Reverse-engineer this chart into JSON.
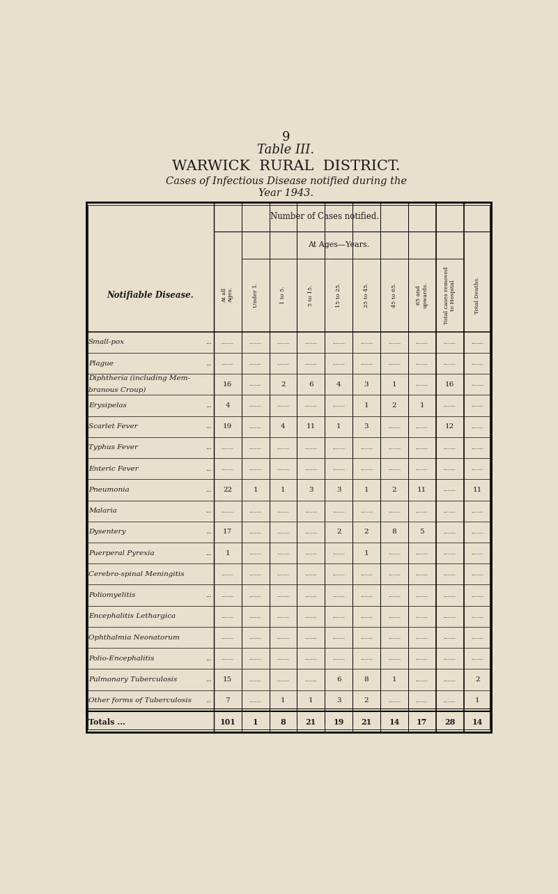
{
  "page_number": "9",
  "table_title": "Table III.",
  "subtitle1": "WARWICK  RURAL  DISTRICT.",
  "subtitle2": "Cases of Infectious Disease notified during the",
  "subtitle3": "Year 1943.",
  "bg_color": "#e8e0cc",
  "text_color": "#1a1a1a",
  "col_header_row1": "Number of Cases notified.",
  "col_header_ages": "At Ages—Years.",
  "col_headers": [
    "At all\nAges.",
    "Under 1.",
    "1 to 5.",
    "5 to 15.",
    "15 to 25.",
    "25 to 45.",
    "45 to 65.",
    "65 and\nupwards.",
    "Total cases removed\nto Hospital",
    "Total Deaths."
  ],
  "row_label_header": "Notifiable Disease.",
  "diseases": [
    "Small-pox",
    "Plague",
    "Diphtheria (including Mem-\nbranous Croup)",
    "Erysipelas",
    "Scarlet Fever",
    "Typhus Fever",
    "Enteric Fever",
    "Pneumonia",
    "Malaria",
    "Dysentery",
    "Puerperal Pyrexia",
    "Cerebro-spinal Meningitis",
    "Poliomyelitis",
    "Encephalitis Lethargica",
    "Ophthalmia Neonatorum",
    "Polio-Encephalitis",
    "Pulmonary Tuberculosis",
    "Other forms of Tuberculosis",
    "Totals ..."
  ],
  "disease_suffix": [
    "...",
    "...",
    "",
    "...",
    "...",
    "...",
    "...",
    "...",
    "...",
    "...",
    "...",
    "",
    "...",
    "",
    "",
    "...",
    "...",
    "...",
    "..."
  ],
  "data": [
    [
      "",
      "",
      "",
      "",
      "",
      "",
      "",
      "",
      "",
      ""
    ],
    [
      "",
      "",
      "",
      "",
      "",
      "",
      "",
      "",
      "",
      ""
    ],
    [
      "16",
      "",
      "2",
      "6",
      "4",
      "3",
      "1",
      "",
      "16",
      ""
    ],
    [
      "4",
      "",
      "",
      "",
      "",
      "1",
      "2",
      "1",
      "",
      ""
    ],
    [
      "19",
      "",
      "4",
      "11",
      "1",
      "3",
      "",
      "",
      "12",
      ""
    ],
    [
      "",
      "",
      "",
      "",
      "",
      "",
      "",
      "",
      "",
      ""
    ],
    [
      "",
      "",
      "",
      "",
      "",
      "",
      "",
      "",
      "",
      ""
    ],
    [
      "22",
      "1",
      "1",
      "3",
      "3",
      "1",
      "2",
      "11",
      "",
      "11"
    ],
    [
      "",
      "",
      "",
      "",
      "",
      "",
      "",
      "",
      "",
      ""
    ],
    [
      "17",
      "",
      "",
      "",
      "2",
      "2",
      "8",
      "5",
      "",
      ""
    ],
    [
      "1",
      "",
      "",
      "",
      "",
      "1",
      "",
      "",
      "",
      ""
    ],
    [
      "",
      "",
      "",
      "",
      "",
      "",
      "",
      "",
      "",
      ""
    ],
    [
      "",
      "",
      "",
      "",
      "",
      "",
      "",
      "",
      "",
      ""
    ],
    [
      "",
      "",
      "",
      "",
      "",
      "",
      "",
      "",
      "",
      ""
    ],
    [
      "",
      "",
      "",
      "",
      "",
      "",
      "",
      "",
      "",
      ""
    ],
    [
      "",
      "",
      "",
      "",
      "",
      "",
      "",
      "",
      "",
      ""
    ],
    [
      "15",
      "",
      "",
      "",
      "6",
      "8",
      "1",
      "",
      "",
      "2"
    ],
    [
      "7",
      "",
      "1",
      "1",
      "3",
      "2",
      "",
      "",
      "",
      "1"
    ],
    [
      "101",
      "1",
      "8",
      "21",
      "19",
      "21",
      "14",
      "17",
      "28",
      "14"
    ]
  ],
  "totals_row_index": 18
}
